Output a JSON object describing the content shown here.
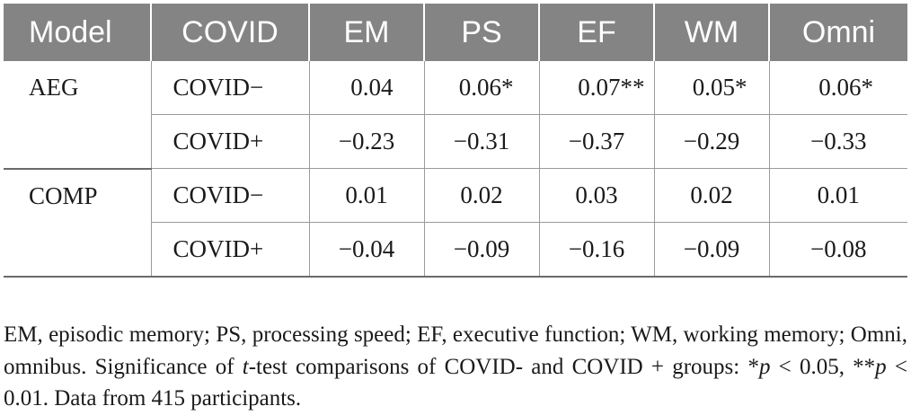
{
  "table": {
    "headers": [
      "Model",
      "COVID",
      "EM",
      "PS",
      "EF",
      "WM",
      "Omni"
    ],
    "rows": [
      {
        "model": "AEG",
        "group": "COVID−",
        "values": [
          "0.04",
          "0.06*",
          "0.07**",
          "0.05*",
          "0.06*"
        ]
      },
      {
        "model": "",
        "group": "COVID+",
        "values": [
          "−0.23",
          "−0.31",
          "−0.37",
          "−0.29",
          "−0.33"
        ]
      },
      {
        "model": "COMP",
        "group": "COVID−",
        "values": [
          "0.01",
          "0.02",
          "0.03",
          "0.02",
          "0.01"
        ]
      },
      {
        "model": "",
        "group": "COVID+",
        "values": [
          "−0.04",
          "−0.09",
          "−0.16",
          "−0.09",
          "−0.08"
        ]
      }
    ]
  },
  "footnote": {
    "text_a": "EM, episodic memory; PS, processing speed; EF, executive function; WM, working memory; Omni, omnibus. Significance of ",
    "t_symbol": "t",
    "text_b": "-test comparisons of COVID- and COVID + groups: *",
    "p1": "p",
    "text_c": " < 0.05, **",
    "p2": "p",
    "text_d": " < 0.01. Data from 415 participants."
  },
  "colors": {
    "header_bg": "#848484",
    "header_text": "#ffffff",
    "rule": "#9a9a9a"
  }
}
